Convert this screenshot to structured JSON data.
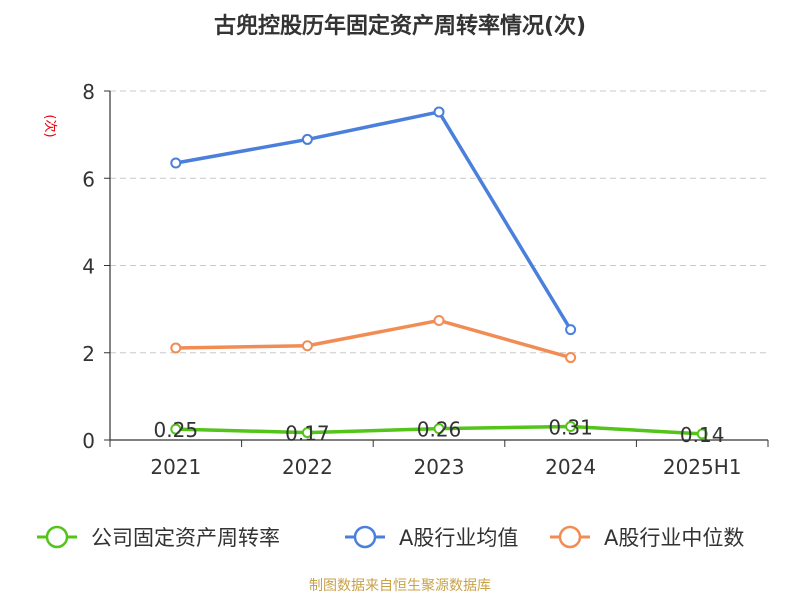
{
  "chart_data": {
    "type": "line",
    "title": "古兜控股历年固定资产周转率情况(次)",
    "ylabel": "(次)",
    "xlabel": "",
    "categories": [
      "2021",
      "2022",
      "2023",
      "2024",
      "2025H1"
    ],
    "ylim": [
      0,
      8
    ],
    "yticks": [
      0,
      2,
      4,
      6,
      8
    ],
    "grid": true,
    "legend_position": "bottom",
    "series": [
      {
        "name": "公司固定资产周转率",
        "color": "#52c41a",
        "values": [
          0.25,
          0.17,
          0.26,
          0.31,
          0.14
        ],
        "show_labels": true
      },
      {
        "name": "A股行业均值",
        "color": "#4a7fdb",
        "values": [
          6.35,
          6.89,
          7.52,
          2.53,
          null
        ],
        "show_labels": false
      },
      {
        "name": "A股行业中位数",
        "color": "#f28c55",
        "values": [
          2.11,
          2.16,
          2.74,
          1.89,
          null
        ],
        "show_labels": false
      }
    ],
    "data_labels": [
      "0.25",
      "0.17",
      "0.26",
      "0.31",
      "0.14"
    ]
  },
  "colors": {
    "title": "#333333",
    "axis": "#333333",
    "grid": "#c8c8c8",
    "ylabel": "#e8000b",
    "source": "#c8a24a"
  },
  "source": "制图数据来自恒生聚源数据库"
}
